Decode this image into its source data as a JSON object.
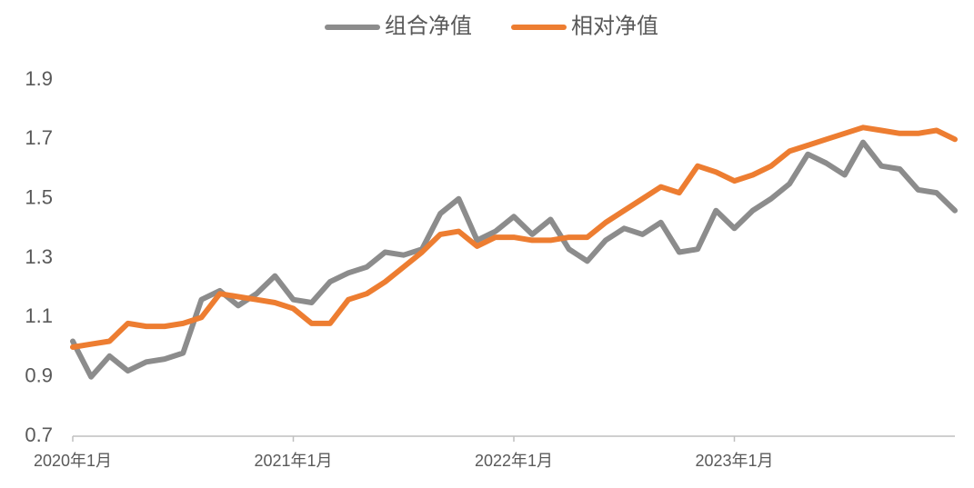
{
  "chart_data": {
    "type": "line",
    "categories": [
      "2020年1月",
      null,
      null,
      null,
      null,
      null,
      null,
      null,
      null,
      null,
      null,
      null,
      "2021年1月",
      null,
      null,
      null,
      null,
      null,
      null,
      null,
      null,
      null,
      null,
      null,
      "2022年1月",
      null,
      null,
      null,
      null,
      null,
      null,
      null,
      null,
      null,
      null,
      null,
      "2023年1月",
      null,
      null,
      null,
      null,
      null,
      null,
      null,
      null,
      null,
      null,
      null,
      null
    ],
    "series": [
      {
        "name": "组合净值",
        "color": "#8c8c8c",
        "values": [
          1.02,
          0.9,
          0.97,
          0.92,
          0.95,
          0.96,
          0.98,
          1.16,
          1.19,
          1.14,
          1.18,
          1.24,
          1.16,
          1.15,
          1.22,
          1.25,
          1.27,
          1.32,
          1.31,
          1.33,
          1.45,
          1.5,
          1.36,
          1.39,
          1.44,
          1.38,
          1.43,
          1.33,
          1.29,
          1.36,
          1.4,
          1.38,
          1.42,
          1.32,
          1.33,
          1.46,
          1.4,
          1.46,
          1.5,
          1.55,
          1.65,
          1.62,
          1.58,
          1.69,
          1.61,
          1.6,
          1.53,
          1.52,
          1.46
        ]
      },
      {
        "name": "相对净值",
        "color": "#ed7d31",
        "values": [
          1.0,
          1.01,
          1.02,
          1.08,
          1.07,
          1.07,
          1.08,
          1.1,
          1.18,
          1.17,
          1.16,
          1.15,
          1.13,
          1.08,
          1.08,
          1.16,
          1.18,
          1.22,
          1.27,
          1.32,
          1.38,
          1.39,
          1.34,
          1.37,
          1.37,
          1.36,
          1.36,
          1.37,
          1.37,
          1.42,
          1.46,
          1.5,
          1.54,
          1.52,
          1.61,
          1.59,
          1.56,
          1.58,
          1.61,
          1.66,
          1.68,
          1.7,
          1.72,
          1.74,
          1.73,
          1.72,
          1.72,
          1.73,
          1.7
        ]
      }
    ],
    "ylim": [
      0.7,
      1.9
    ],
    "yticks": [
      0.7,
      0.9,
      1.1,
      1.3,
      1.5,
      1.7,
      1.9
    ],
    "grid": false,
    "legend": "top"
  }
}
